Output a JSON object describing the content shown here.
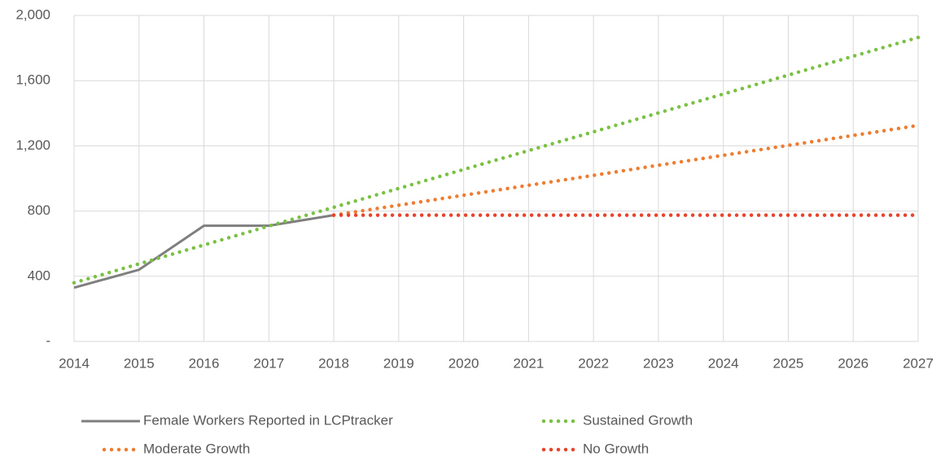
{
  "chart_data": {
    "type": "line",
    "x": [
      2014,
      2015,
      2016,
      2017,
      2018,
      2019,
      2020,
      2021,
      2022,
      2023,
      2024,
      2025,
      2026,
      2027
    ],
    "xlim": [
      2014,
      2027
    ],
    "xticks": [
      2014,
      2015,
      2016,
      2017,
      2018,
      2019,
      2020,
      2021,
      2022,
      2023,
      2024,
      2025,
      2026,
      2027
    ],
    "ylim": [
      0,
      2000
    ],
    "yticks": [
      {
        "value": 0,
        "label": "-"
      },
      400,
      800,
      {
        "value": 1200,
        "label": "1,200"
      },
      {
        "value": 1600,
        "label": "1,600"
      },
      {
        "value": 2000,
        "label": "2,000"
      }
    ],
    "grid": true,
    "series": [
      {
        "name": "Female Workers Reported in LCPtracker",
        "color": "#7f7f7f",
        "style": "solid",
        "values": [
          330,
          440,
          710,
          710,
          775,
          null,
          null,
          null,
          null,
          null,
          null,
          null,
          null,
          null
        ]
      },
      {
        "name": "Sustained Growth",
        "color": "#7ac143",
        "style": "dotted",
        "values": [
          360,
          476,
          592,
          708,
          823,
          939,
          1055,
          1171,
          1286,
          1402,
          1518,
          1634,
          1750,
          1865
        ]
      },
      {
        "name": "Moderate Growth",
        "color": "#ed7d31",
        "style": "dotted",
        "values": [
          null,
          null,
          null,
          null,
          775,
          836,
          897,
          958,
          1019,
          1081,
          1142,
          1203,
          1264,
          1325
        ]
      },
      {
        "name": "No Growth",
        "color": "#e8432b",
        "style": "dotted",
        "values": [
          null,
          null,
          null,
          null,
          775,
          775,
          775,
          775,
          775,
          775,
          775,
          775,
          775,
          775
        ]
      }
    ]
  }
}
